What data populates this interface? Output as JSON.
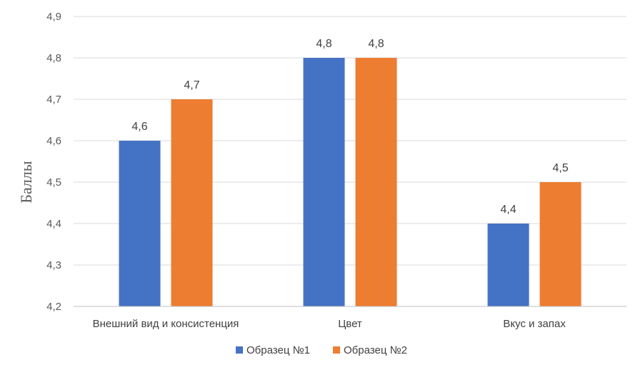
{
  "chart_data": {
    "type": "bar",
    "ylabel": "Баллы",
    "xlabel": "",
    "categories": [
      "Внешний вид и консистенция",
      "Цвет",
      "Вкус и запах"
    ],
    "series": [
      {
        "name": "Образец №1",
        "color": "#4472c4",
        "values": [
          4.6,
          4.8,
          4.4
        ]
      },
      {
        "name": "Образец №2",
        "color": "#ed7d31",
        "values": [
          4.7,
          4.8,
          4.5
        ]
      }
    ],
    "data_labels": [
      [
        "4,6",
        "4,8",
        "4,4"
      ],
      [
        "4,7",
        "4,8",
        "4,5"
      ]
    ],
    "ylim": [
      4.2,
      4.9
    ],
    "yticks": [
      4.2,
      4.3,
      4.4,
      4.5,
      4.6,
      4.7,
      4.8,
      4.9
    ],
    "ytick_labels": [
      "4,2",
      "4,3",
      "4,4",
      "4,5",
      "4,6",
      "4,7",
      "4,8",
      "4,9"
    ],
    "grid": true,
    "legend_position": "bottom"
  }
}
